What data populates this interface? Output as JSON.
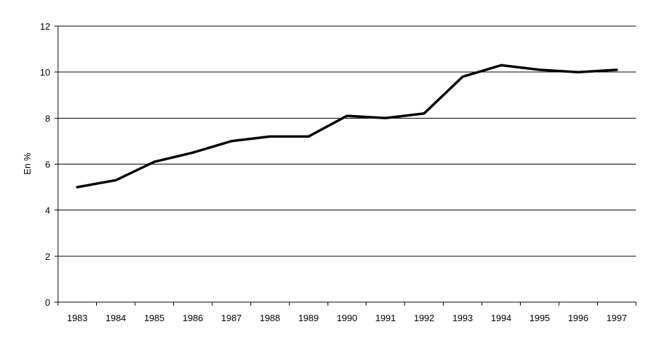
{
  "chart_data": {
    "type": "line",
    "title": "",
    "xlabel": "",
    "ylabel": "En %",
    "ylim": [
      0,
      12
    ],
    "yticks": [
      0,
      2,
      4,
      6,
      8,
      10,
      12
    ],
    "grid": true,
    "categories": [
      "1983",
      "1984",
      "1985",
      "1986",
      "1987",
      "1988",
      "1989",
      "1990",
      "1991",
      "1992",
      "1993",
      "1994",
      "1995",
      "1996",
      "1997"
    ],
    "series": [
      {
        "values": [
          5.0,
          5.3,
          6.1,
          6.5,
          7.0,
          7.2,
          7.2,
          8.1,
          8.0,
          8.2,
          9.8,
          10.3,
          10.1,
          10.0,
          10.1
        ],
        "color": "#000000"
      }
    ]
  }
}
